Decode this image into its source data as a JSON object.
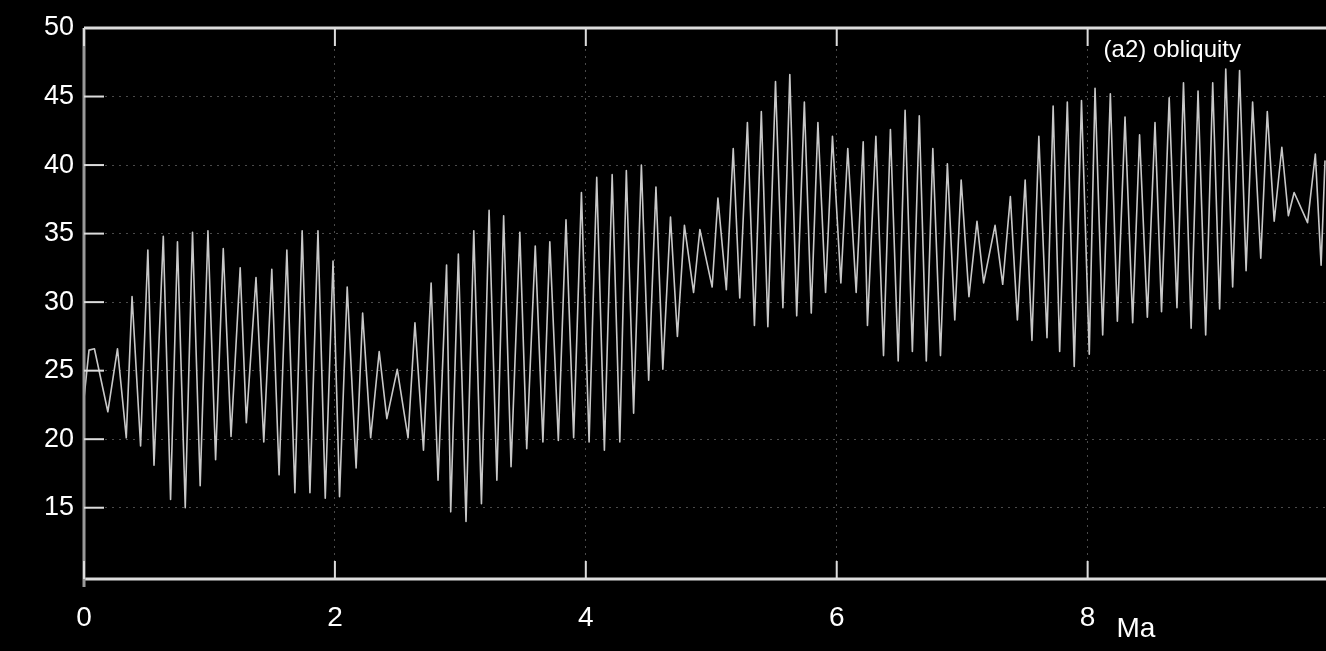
{
  "chart_data": {
    "type": "line",
    "xlabel": "Ma",
    "annotations": [
      "(a2) obliquity"
    ],
    "xlim": [
      0,
      9.9
    ],
    "xticks": [
      0,
      2,
      4,
      6,
      8
    ],
    "ylim": [
      9.8,
      50
    ],
    "yticks": [
      15,
      20,
      25,
      30,
      35,
      40,
      45,
      50
    ],
    "grid": true,
    "legend": false,
    "marker": "none",
    "line_style": "solid",
    "series": [
      {
        "color": "#c8c8c8",
        "x": [
          0,
          0.04,
          0.083,
          0.19,
          0.267,
          0.337,
          0.383,
          0.451,
          0.509,
          0.558,
          0.632,
          0.69,
          0.745,
          0.807,
          0.865,
          0.926,
          0.988,
          1.049,
          1.11,
          1.172,
          1.245,
          1.294,
          1.371,
          1.433,
          1.497,
          1.555,
          1.617,
          1.681,
          1.739,
          1.801,
          1.865,
          1.923,
          1.985,
          2.037,
          2.098,
          2.169,
          2.221,
          2.285,
          2.353,
          2.414,
          2.497,
          2.583,
          2.638,
          2.706,
          2.767,
          2.822,
          2.89,
          2.923,
          2.984,
          3.045,
          3.107,
          3.168,
          3.229,
          3.291,
          3.345,
          3.404,
          3.474,
          3.529,
          3.597,
          3.658,
          3.713,
          3.781,
          3.842,
          3.903,
          3.965,
          4.026,
          4.087,
          4.148,
          4.21,
          4.271,
          4.323,
          4.381,
          4.443,
          4.501,
          4.559,
          4.614,
          4.675,
          4.73,
          4.786,
          4.859,
          4.909,
          5.007,
          5.053,
          5.12,
          5.175,
          5.227,
          5.288,
          5.344,
          5.399,
          5.451,
          5.512,
          5.571,
          5.626,
          5.681,
          5.742,
          5.797,
          5.85,
          5.911,
          5.966,
          6.033,
          6.088,
          6.155,
          6.211,
          6.245,
          6.312,
          6.373,
          6.428,
          6.49,
          6.545,
          6.603,
          6.658,
          6.714,
          6.766,
          6.827,
          6.882,
          6.941,
          6.992,
          7.054,
          7.118,
          7.171,
          7.262,
          7.323,
          7.384,
          7.44,
          7.502,
          7.556,
          7.611,
          7.676,
          7.725,
          7.777,
          7.838,
          7.893,
          7.951,
          8.013,
          8.059,
          8.12,
          8.181,
          8.237,
          8.298,
          8.359,
          8.414,
          8.476,
          8.537,
          8.589,
          8.65,
          8.712,
          8.764,
          8.825,
          8.88,
          8.941,
          8.997,
          9.052,
          9.101,
          9.156,
          9.211,
          9.263,
          9.315,
          9.38,
          9.432,
          9.487,
          9.548,
          9.6,
          9.646,
          9.753,
          9.815,
          9.861,
          9.892
        ],
        "values": [
          23,
          26.5,
          26.6,
          22,
          26.6,
          20.1,
          30.4,
          19.5,
          33.8,
          18.1,
          34.8,
          15.6,
          34.4,
          15,
          35.1,
          16.6,
          35.2,
          18.5,
          33.9,
          20.2,
          32.5,
          21.2,
          31.8,
          19.8,
          32.4,
          17.4,
          33.8,
          16.1,
          35.2,
          16.1,
          35.2,
          15.7,
          33,
          15.8,
          31.1,
          17.9,
          29.2,
          20.1,
          26.4,
          21.5,
          25.1,
          20.1,
          28.5,
          19.2,
          31.4,
          17,
          32.7,
          14.7,
          33.5,
          14,
          35.2,
          15.3,
          36.7,
          17,
          36.3,
          18,
          35.1,
          19.3,
          34.1,
          19.8,
          34.4,
          19.9,
          36,
          20.1,
          38,
          19.8,
          39.1,
          19.2,
          39.3,
          19.8,
          39.6,
          21.9,
          40,
          24.3,
          38.4,
          25.1,
          36.2,
          27.5,
          35.6,
          30.7,
          35.3,
          31.1,
          37.6,
          30.9,
          41.2,
          30.3,
          43.1,
          28.3,
          43.9,
          28.2,
          46.1,
          29.6,
          46.6,
          29,
          44.6,
          29.2,
          43.1,
          30.7,
          42.1,
          31.4,
          41.2,
          30.7,
          41.7,
          28.3,
          42.1,
          26.1,
          42.6,
          25.7,
          44,
          26.4,
          43.6,
          25.7,
          41.2,
          26.1,
          40.1,
          28.7,
          38.9,
          30.4,
          35.9,
          31.4,
          35.6,
          31.3,
          37.7,
          28.7,
          38.9,
          27.2,
          42.1,
          27.4,
          44.3,
          26.4,
          44.6,
          25.3,
          44.7,
          26.2,
          45.6,
          27.6,
          45.2,
          28.6,
          43.5,
          28.5,
          42.2,
          28.9,
          43.1,
          29.3,
          44.9,
          29.6,
          46,
          28.1,
          45.4,
          27.6,
          46,
          29.5,
          47,
          31.1,
          46.9,
          32.3,
          44.6,
          33.2,
          43.9,
          35.9,
          41.3,
          36.3,
          38,
          35.8,
          40.8,
          32.7,
          40.3
        ]
      }
    ]
  }
}
